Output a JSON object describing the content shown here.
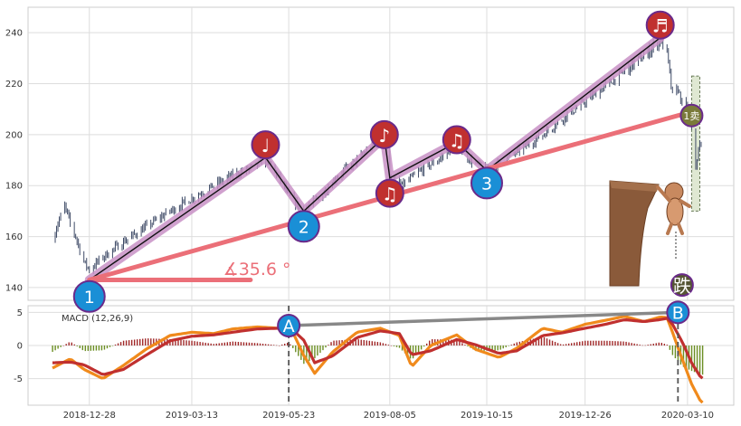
{
  "chart_data": [
    {
      "type": "candlestick",
      "panel": "price",
      "x_ticks": [
        "2018-12-28",
        "2019-03-13",
        "2019-05-23",
        "2019-08-05",
        "2019-10-15",
        "2019-12-26",
        "2020-03-10"
      ],
      "x_range": [
        "2018-12-01",
        "2020-03-22"
      ],
      "ylim": [
        135,
        250
      ],
      "y_ticks": [
        140,
        160,
        180,
        200,
        220,
        240
      ],
      "grid": true,
      "price_path": [
        [
          "2018-12-01",
          158
        ],
        [
          "2018-12-04",
          164
        ],
        [
          "2018-12-07",
          168
        ],
        [
          "2018-12-10",
          172
        ],
        [
          "2018-12-14",
          165
        ],
        [
          "2018-12-18",
          160
        ],
        [
          "2018-12-24",
          150
        ],
        [
          "2018-12-28",
          147
        ],
        [
          "2019-01-07",
          152
        ],
        [
          "2019-01-22",
          158
        ],
        [
          "2019-02-08",
          164
        ],
        [
          "2019-02-25",
          170
        ],
        [
          "2019-03-13",
          175
        ],
        [
          "2019-03-29",
          180
        ],
        [
          "2019-04-12",
          184
        ],
        [
          "2019-04-30",
          188
        ],
        [
          "2019-05-06",
          191
        ],
        [
          "2019-05-16",
          183
        ],
        [
          "2019-05-23",
          176
        ],
        [
          "2019-06-03",
          170
        ],
        [
          "2019-06-17",
          177
        ],
        [
          "2019-06-28",
          184
        ],
        [
          "2019-07-12",
          190
        ],
        [
          "2019-07-26",
          197
        ],
        [
          "2019-08-01",
          199
        ],
        [
          "2019-08-05",
          183
        ],
        [
          "2019-08-14",
          180
        ],
        [
          "2019-08-28",
          186
        ],
        [
          "2019-09-12",
          191
        ],
        [
          "2019-09-23",
          197
        ],
        [
          "2019-10-03",
          190
        ],
        [
          "2019-10-15",
          186
        ],
        [
          "2019-10-28",
          190
        ],
        [
          "2019-11-11",
          195
        ],
        [
          "2019-11-25",
          200
        ],
        [
          "2019-12-09",
          206
        ],
        [
          "2019-12-26",
          213
        ],
        [
          "2020-01-10",
          219
        ],
        [
          "2020-01-24",
          225
        ],
        [
          "2020-02-07",
          231
        ],
        [
          "2020-02-19",
          237
        ],
        [
          "2020-02-24",
          232
        ],
        [
          "2020-02-28",
          215
        ],
        [
          "2020-03-03",
          218
        ],
        [
          "2020-03-06",
          212
        ],
        [
          "2020-03-10",
          210
        ],
        [
          "2020-03-13",
          201
        ],
        [
          "2020-03-16",
          188
        ],
        [
          "2020-03-19",
          196
        ],
        [
          "2020-03-22",
          192
        ]
      ],
      "trendlines": [
        {
          "kind": "zigzag",
          "color": "#c890c6",
          "points": [
            [
              "2018-12-28",
              143
            ],
            [
              "2019-05-06",
              191
            ],
            [
              "2019-06-03",
              170
            ],
            [
              "2019-08-01",
              199
            ],
            [
              "2019-08-05",
              183
            ],
            [
              "2019-09-23",
              197
            ],
            [
              "2019-10-15",
              186
            ],
            [
              "2020-02-19",
              238
            ]
          ]
        },
        {
          "kind": "support",
          "color": "#eb6f78",
          "points": [
            [
              "2018-12-28",
              143
            ],
            [
              "2020-03-13",
              209
            ]
          ]
        },
        {
          "kind": "angle-base",
          "color": "#eb6f78",
          "points": [
            [
              "2018-12-28",
              143
            ],
            [
              "2019-04-25",
              143
            ]
          ]
        }
      ],
      "angle_label": {
        "text": "∡35.6 °",
        "x": "2019-04-05",
        "y": 145,
        "color": "#eb6f78"
      },
      "markers": [
        {
          "label": "1",
          "x": "2018-12-28",
          "y": 136.5,
          "fill": "#1a8fd6"
        },
        {
          "label": "2",
          "x": "2019-06-03",
          "y": 164,
          "fill": "#1a8fd6"
        },
        {
          "label": "3",
          "x": "2019-10-15",
          "y": 181,
          "fill": "#1a8fd6"
        },
        {
          "label": "♩",
          "x": "2019-05-06",
          "y": 196,
          "fill": "#c0302f"
        },
        {
          "label": "♪",
          "x": "2019-08-01",
          "y": 200,
          "fill": "#c0302f"
        },
        {
          "label": "♫",
          "x": "2019-08-05",
          "y": 177,
          "fill": "#c0302f"
        },
        {
          "label": "♫",
          "x": "2019-09-23",
          "y": 198,
          "fill": "#c0302f"
        },
        {
          "label": "♬",
          "x": "2020-02-19",
          "y": 243,
          "fill": "#c0302f"
        },
        {
          "label": "1卖",
          "x": "2020-03-13",
          "y": 207.5,
          "fill": "#7a7a3a"
        },
        {
          "label": "跌",
          "x": "2020-03-06",
          "y": 141,
          "fill": "#555533"
        }
      ],
      "shaded_box": {
        "x0": "2020-03-13",
        "x1": "2020-03-19",
        "y0": 170,
        "y1": 223,
        "color": "#dfe8d2"
      }
    },
    {
      "type": "line",
      "panel": "macd",
      "title": "MACD (12,26,9)",
      "ylim": [
        -9,
        6
      ],
      "y_ticks": [
        -5,
        0,
        5
      ],
      "grid": true,
      "series": [
        {
          "color": "#f08a1c",
          "points": [
            [
              "2018-12-01",
              -3.4
            ],
            [
              "2018-12-14",
              -2.0
            ],
            [
              "2018-12-24",
              -3.6
            ],
            [
              "2019-01-07",
              -5.0
            ],
            [
              "2019-01-22",
              -3.0
            ],
            [
              "2019-02-08",
              -0.5
            ],
            [
              "2019-02-25",
              1.5
            ],
            [
              "2019-03-13",
              2.0
            ],
            [
              "2019-03-29",
              1.8
            ],
            [
              "2019-04-12",
              2.5
            ],
            [
              "2019-04-30",
              2.8
            ],
            [
              "2019-05-16",
              2.6
            ],
            [
              "2019-05-23",
              3.3
            ],
            [
              "2019-06-03",
              -1.5
            ],
            [
              "2019-06-11",
              -4.2
            ],
            [
              "2019-06-24",
              -1.0
            ],
            [
              "2019-07-12",
              2.0
            ],
            [
              "2019-07-29",
              2.6
            ],
            [
              "2019-08-12",
              1.5
            ],
            [
              "2019-08-21",
              -3.2
            ],
            [
              "2019-09-04",
              0.0
            ],
            [
              "2019-09-23",
              1.6
            ],
            [
              "2019-10-07",
              -0.6
            ],
            [
              "2019-10-24",
              -1.8
            ],
            [
              "2019-11-06",
              -0.4
            ],
            [
              "2019-11-25",
              2.6
            ],
            [
              "2019-12-09",
              2.0
            ],
            [
              "2019-12-26",
              3.2
            ],
            [
              "2020-01-10",
              3.8
            ],
            [
              "2020-01-24",
              4.4
            ],
            [
              "2020-02-07",
              3.6
            ],
            [
              "2020-02-19",
              4.3
            ],
            [
              "2020-02-24",
              4.2
            ],
            [
              "2020-02-28",
              2.0
            ],
            [
              "2020-03-06",
              -2.0
            ],
            [
              "2020-03-13",
              -5.8
            ],
            [
              "2020-03-19",
              -8.2
            ],
            [
              "2020-03-22",
              -8.8
            ]
          ]
        },
        {
          "color": "#c0302f",
          "points": [
            [
              "2018-12-01",
              -2.6
            ],
            [
              "2018-12-14",
              -2.5
            ],
            [
              "2018-12-24",
              -2.9
            ],
            [
              "2019-01-07",
              -4.4
            ],
            [
              "2019-01-22",
              -3.6
            ],
            [
              "2019-02-08",
              -1.4
            ],
            [
              "2019-02-25",
              0.7
            ],
            [
              "2019-03-13",
              1.4
            ],
            [
              "2019-03-29",
              1.6
            ],
            [
              "2019-04-12",
              2.0
            ],
            [
              "2019-04-30",
              2.5
            ],
            [
              "2019-05-16",
              2.6
            ],
            [
              "2019-05-23",
              2.9
            ],
            [
              "2019-06-03",
              0.8
            ],
            [
              "2019-06-11",
              -2.6
            ],
            [
              "2019-06-24",
              -1.6
            ],
            [
              "2019-07-12",
              1.2
            ],
            [
              "2019-07-29",
              2.2
            ],
            [
              "2019-08-12",
              1.8
            ],
            [
              "2019-08-21",
              -1.4
            ],
            [
              "2019-09-04",
              -0.8
            ],
            [
              "2019-09-23",
              0.9
            ],
            [
              "2019-10-07",
              0.1
            ],
            [
              "2019-10-24",
              -1.2
            ],
            [
              "2019-11-06",
              -0.8
            ],
            [
              "2019-11-25",
              1.5
            ],
            [
              "2019-12-09",
              1.9
            ],
            [
              "2019-12-26",
              2.6
            ],
            [
              "2020-01-10",
              3.2
            ],
            [
              "2020-01-24",
              3.9
            ],
            [
              "2020-02-07",
              3.6
            ],
            [
              "2020-02-19",
              3.9
            ],
            [
              "2020-02-24",
              4.1
            ],
            [
              "2020-02-28",
              3.2
            ],
            [
              "2020-03-06",
              0.6
            ],
            [
              "2020-03-13",
              -2.6
            ],
            [
              "2020-03-19",
              -4.6
            ],
            [
              "2020-03-22",
              -5.1
            ]
          ]
        }
      ],
      "divergence_line": {
        "color": "#888888",
        "points": [
          [
            "2019-05-23",
            3.0
          ],
          [
            "2020-03-03",
            5.0
          ]
        ]
      },
      "vlines": [
        "2019-05-23",
        "2020-03-03"
      ],
      "markers": [
        {
          "label": "A",
          "x": "2019-05-23",
          "y": 3.0,
          "fill": "#1a8fd6"
        },
        {
          "label": "B",
          "x": "2020-03-03",
          "y": 5.0,
          "fill": "#1a8fd6"
        }
      ],
      "histogram_colors": {
        "positive": "#a02828",
        "negative": "#6b8e23"
      }
    }
  ]
}
